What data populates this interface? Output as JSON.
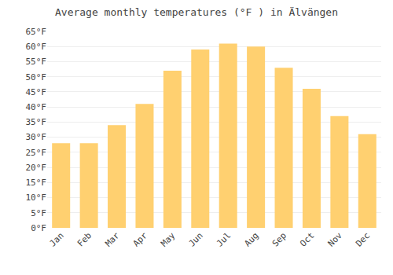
{
  "chart_data": {
    "type": "bar",
    "title": "Average monthly temperatures (°F ) in Älvängen",
    "categories": [
      "Jan",
      "Feb",
      "Mar",
      "Apr",
      "May",
      "Jun",
      "Jul",
      "Aug",
      "Sep",
      "Oct",
      "Nov",
      "Dec"
    ],
    "values": [
      28,
      28,
      34,
      41,
      52,
      59,
      61,
      60,
      53,
      46,
      37,
      31
    ],
    "color": "#FFD070",
    "ylim": [
      0,
      65
    ],
    "yticks": [
      {
        "value": 0,
        "label": "0°F"
      },
      {
        "value": 5,
        "label": "5°F"
      },
      {
        "value": 10,
        "label": "10°F"
      },
      {
        "value": 15,
        "label": "15°F"
      },
      {
        "value": 20,
        "label": "20°F"
      },
      {
        "value": 25,
        "label": "25°F"
      },
      {
        "value": 30,
        "label": "30°F"
      },
      {
        "value": 35,
        "label": "35°F"
      },
      {
        "value": 40,
        "label": "40°F"
      },
      {
        "value": 45,
        "label": "45°F"
      },
      {
        "value": 50,
        "label": "50°F"
      },
      {
        "value": 55,
        "label": "55°F"
      },
      {
        "value": 60,
        "label": "60°F"
      },
      {
        "value": 65,
        "label": "65°F"
      }
    ],
    "grid": true
  }
}
